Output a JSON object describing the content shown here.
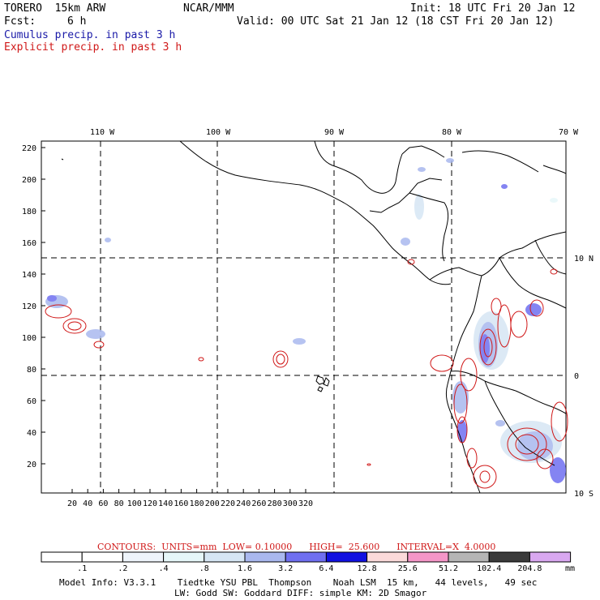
{
  "header": {
    "model": "TORERO  15km ARW",
    "center": "NCAR/MMM",
    "init": "Init: 18 UTC Fri 20 Jan 12",
    "fcst_label": "Fcst:",
    "fcst_value": "6 h",
    "valid": "Valid: 00 UTC Sat 21 Jan 12 (18 CST Fri 20 Jan 12)",
    "legend_cumulus": "Cumulus precip. in past 3 h",
    "legend_explicit": "Explicit precip. in past 3 h"
  },
  "colors": {
    "cumulus": "#1a1aa8",
    "explicit": "#d01818",
    "contour": "#d01818",
    "coast": "#000000"
  },
  "map": {
    "top_lon_labels": [
      "110 W",
      "100 W",
      "90 W",
      "80 W",
      "70 W"
    ],
    "right_lat_labels": [
      "10 N",
      "0",
      "10 S"
    ],
    "y_ticks": [
      "220",
      "200",
      "180",
      "160",
      "140",
      "120",
      "100",
      "80",
      "60",
      "40",
      "20"
    ],
    "x_ticks": [
      "20",
      "40",
      "60",
      "80",
      "100",
      "120",
      "140",
      "160",
      "180",
      "200",
      "220",
      "240",
      "260",
      "280",
      "300",
      "320"
    ]
  },
  "contour_info": "CONTOURS:  UNITS=mm  LOW= 0.10000      HIGH=  25.600      INTERVAL=X  4.0000",
  "colorbar": {
    "labels": [
      ".1",
      ".2",
      ".4",
      ".8",
      "1.6",
      "3.2",
      "6.4",
      "12.8",
      "25.6",
      "51.2",
      "102.4",
      "204.8"
    ],
    "unit": "mm",
    "colors": [
      "#ffffff",
      "#ffffff",
      "#eef4fb",
      "#e6f7f9",
      "#d6e6f4",
      "#a9b8ee",
      "#6f6ff0",
      "#1010e0",
      "#fbdada",
      "#f596c8",
      "#b5b5b5",
      "#3a3a3a",
      "#d9a8f0"
    ]
  },
  "footer": {
    "line1": "Model Info: V3.3.1    Tiedtke YSU PBL  Thompson    Noah LSM  15 km,   44 levels,   49 sec",
    "line2": "LW: Godd SW: Goddard DIFF: simple KM: 2D Smagor"
  }
}
